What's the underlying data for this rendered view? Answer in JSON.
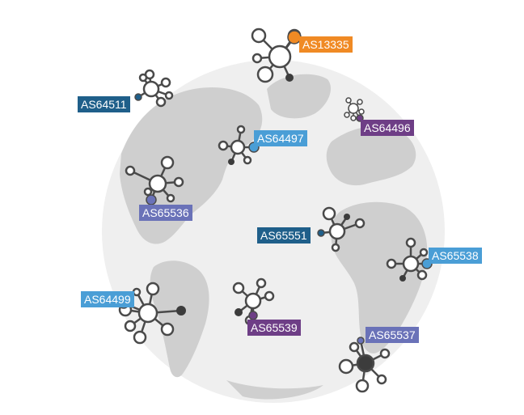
{
  "palette": {
    "globe": "#efefef",
    "land": "#cfcfcf",
    "node_stroke": "#4a4a4a",
    "node_fill": "#ffffff",
    "node_dark": "#3c3c3c"
  },
  "networks": [
    {
      "asn": "AS13335",
      "color": "#f08a24"
    },
    {
      "asn": "AS64511",
      "color": "#1f5f8a"
    },
    {
      "asn": "AS64496",
      "color": "#6e3e86"
    },
    {
      "asn": "AS64497",
      "color": "#4a9ed6"
    },
    {
      "asn": "AS65536",
      "color": "#6a72b8"
    },
    {
      "asn": "AS65551",
      "color": "#1f5f8a"
    },
    {
      "asn": "AS65538",
      "color": "#4a9ed6"
    },
    {
      "asn": "AS64499",
      "color": "#4a9ed6"
    },
    {
      "asn": "AS65539",
      "color": "#6e3e86"
    },
    {
      "asn": "AS65537",
      "color": "#6a72b8"
    }
  ]
}
